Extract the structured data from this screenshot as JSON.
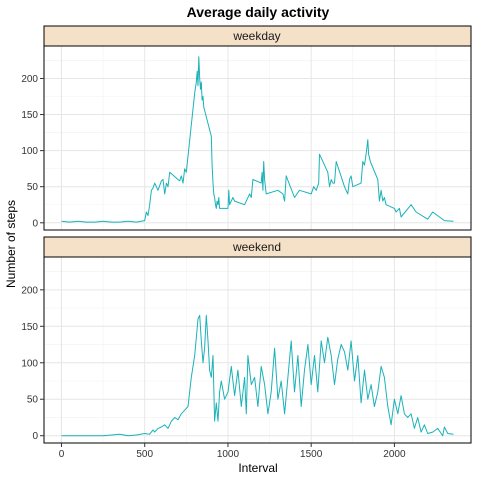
{
  "title": "Average daily activity",
  "xlabel": "Interval",
  "ylabel": "Number of steps",
  "colors": {
    "line": "#1ab2b8",
    "strip_fill": "#f5e0c8",
    "panel_border": "#000000",
    "grid_major": "#e6e6e6",
    "grid_minor": "#f2f2f2",
    "background": "#ffffff"
  },
  "chart_data": {
    "type": "line",
    "facet_by": "day type",
    "xlim": [
      -105,
      2460
    ],
    "ylim": [
      -10,
      245
    ],
    "x_ticks": [
      0,
      500,
      1000,
      1500,
      2000
    ],
    "y_ticks": [
      0,
      50,
      100,
      150,
      200
    ],
    "grid": true,
    "panels": [
      {
        "name": "weekday",
        "x": [
          0,
          50,
          100,
          150,
          200,
          250,
          300,
          350,
          400,
          450,
          500,
          510,
          520,
          530,
          540,
          550,
          560,
          570,
          580,
          600,
          610,
          620,
          630,
          640,
          650,
          700,
          710,
          720,
          730,
          740,
          750,
          800,
          810,
          815,
          820,
          825,
          830,
          835,
          840,
          845,
          850,
          855,
          900,
          905,
          910,
          915,
          920,
          925,
          930,
          935,
          940,
          945,
          950,
          1000,
          1005,
          1010,
          1030,
          1040,
          1100,
          1130,
          1140,
          1150,
          1200,
          1205,
          1210,
          1215,
          1220,
          1230,
          1300,
          1330,
          1340,
          1350,
          1400,
          1430,
          1500,
          1515,
          1530,
          1545,
          1550,
          1600,
          1610,
          1620,
          1630,
          1640,
          1650,
          1700,
          1710,
          1720,
          1730,
          1740,
          1750,
          1800,
          1810,
          1820,
          1830,
          1840,
          1845,
          1850,
          1855,
          1900,
          1910,
          1920,
          1930,
          1940,
          1950,
          2000,
          2010,
          2030,
          2040,
          2100,
          2130,
          2200,
          2230,
          2300,
          2355
        ],
        "y": [
          2,
          1,
          2,
          1,
          1,
          2,
          1,
          1,
          2,
          1,
          3,
          15,
          10,
          25,
          45,
          48,
          55,
          50,
          45,
          58,
          60,
          40,
          55,
          50,
          70,
          60,
          58,
          65,
          55,
          75,
          70,
          180,
          195,
          210,
          190,
          230,
          200,
          185,
          195,
          170,
          175,
          160,
          120,
          80,
          55,
          40,
          35,
          25,
          20,
          30,
          25,
          35,
          20,
          20,
          45,
          25,
          35,
          30,
          25,
          40,
          35,
          60,
          55,
          70,
          45,
          85,
          60,
          40,
          45,
          40,
          30,
          65,
          35,
          45,
          40,
          50,
          45,
          55,
          95,
          70,
          50,
          60,
          55,
          55,
          85,
          50,
          45,
          40,
          60,
          65,
          50,
          55,
          85,
          80,
          95,
          115,
          95,
          90,
          85,
          60,
          30,
          45,
          30,
          35,
          25,
          20,
          15,
          20,
          8,
          25,
          15,
          5,
          15,
          3,
          2
        ]
      },
      {
        "name": "weekend",
        "x": [
          0,
          50,
          100,
          150,
          200,
          250,
          300,
          350,
          400,
          450,
          500,
          530,
          550,
          560,
          580,
          600,
          620,
          640,
          660,
          680,
          700,
          720,
          740,
          760,
          780,
          800,
          820,
          830,
          840,
          850,
          860,
          870,
          880,
          890,
          900,
          910,
          920,
          930,
          940,
          950,
          960,
          980,
          1000,
          1020,
          1040,
          1060,
          1080,
          1100,
          1110,
          1120,
          1140,
          1160,
          1180,
          1200,
          1220,
          1240,
          1260,
          1280,
          1300,
          1320,
          1340,
          1360,
          1380,
          1400,
          1420,
          1440,
          1460,
          1480,
          1500,
          1520,
          1540,
          1560,
          1580,
          1600,
          1620,
          1640,
          1660,
          1680,
          1700,
          1720,
          1740,
          1760,
          1780,
          1800,
          1820,
          1840,
          1860,
          1880,
          1900,
          1920,
          1940,
          1960,
          1980,
          2000,
          2020,
          2040,
          2060,
          2080,
          2100,
          2120,
          2140,
          2160,
          2180,
          2200,
          2230,
          2260,
          2290,
          2300,
          2320,
          2355
        ],
        "y": [
          0,
          0,
          0,
          0,
          0,
          0,
          1,
          2,
          0,
          1,
          3,
          2,
          8,
          5,
          10,
          12,
          15,
          10,
          20,
          25,
          22,
          30,
          35,
          40,
          80,
          110,
          160,
          165,
          130,
          100,
          120,
          165,
          130,
          90,
          80,
          110,
          20,
          45,
          20,
          60,
          75,
          50,
          60,
          95,
          55,
          90,
          40,
          80,
          30,
          110,
          70,
          80,
          40,
          95,
          70,
          30,
          60,
          120,
          50,
          75,
          30,
          80,
          130,
          60,
          110,
          40,
          90,
          125,
          70,
          110,
          60,
          130,
          100,
          135,
          110,
          70,
          105,
          125,
          115,
          90,
          130,
          75,
          110,
          45,
          90,
          50,
          70,
          40,
          60,
          95,
          80,
          40,
          15,
          50,
          30,
          55,
          30,
          25,
          30,
          10,
          25,
          5,
          15,
          3,
          5,
          10,
          0,
          12,
          3,
          2
        ]
      }
    ]
  }
}
